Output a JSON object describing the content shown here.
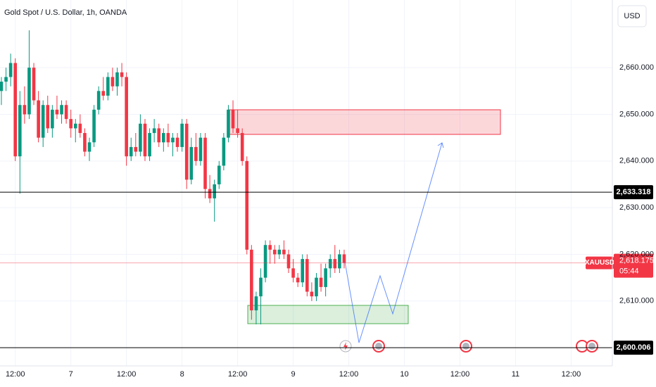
{
  "chart_data": {
    "type": "candlestick",
    "title": "Gold Spot / U.S. Dollar, 1h, OANDA",
    "currency": "USD",
    "up_color": "#089981",
    "down_color": "#f23645",
    "x": [
      9,
      10,
      11,
      12,
      13,
      14,
      15,
      16,
      17,
      18,
      19,
      20,
      21,
      22,
      23,
      24,
      25,
      26,
      27,
      28,
      29,
      30,
      31,
      32,
      33,
      34,
      35,
      36,
      37,
      38,
      39,
      40,
      41,
      42,
      43,
      44,
      45,
      46,
      47,
      48,
      49,
      50,
      51,
      52,
      53,
      54,
      55,
      56,
      57,
      58,
      59,
      60,
      61,
      62,
      63,
      64,
      65,
      66,
      67,
      68,
      69,
      70,
      71,
      72,
      73,
      74,
      75,
      76,
      77,
      78,
      79,
      80,
      81,
      82,
      83
    ],
    "open": [
      2655,
      2657,
      2658,
      2661,
      2641,
      2652,
      2650,
      2660,
      2653,
      2645,
      2652,
      2647,
      2651,
      2650,
      2652,
      2649,
      2647,
      2648,
      2646,
      2642,
      2644,
      2651,
      2655,
      2654,
      2658,
      2656,
      2659,
      2658,
      2641,
      2643,
      2642,
      2648,
      2641,
      2646,
      2647,
      2644,
      2646,
      2644,
      2645,
      2643,
      2648,
      2636,
      2643,
      2640,
      2645,
      2634,
      2632,
      2635,
      2639,
      2645,
      2651,
      2647,
      2646,
      2640,
      2621,
      2608,
      2611,
      2615,
      2622,
      2621,
      2620,
      2621,
      2620,
      2617,
      2615,
      2614,
      2619,
      2612,
      2611,
      2615,
      2613,
      2617,
      2619,
      2617,
      2620
    ],
    "high": [
      2658,
      2660,
      2663,
      2662,
      2655,
      2656,
      2668,
      2661,
      2655,
      2653,
      2654,
      2652,
      2654,
      2653,
      2653,
      2651,
      2649,
      2650,
      2647,
      2645,
      2652,
      2656,
      2658,
      2659,
      2660,
      2660,
      2661,
      2659,
      2645,
      2646,
      2650,
      2649,
      2647,
      2649,
      2648,
      2647,
      2648,
      2646,
      2646,
      2649,
      2649,
      2645,
      2646,
      2646,
      2646,
      2637,
      2636,
      2640,
      2646,
      2652,
      2653,
      2651,
      2647,
      2641,
      2622,
      2612,
      2617,
      2623,
      2623,
      2622,
      2622,
      2623,
      2621,
      2619,
      2616,
      2620,
      2620,
      2614,
      2616,
      2618,
      2618,
      2620,
      2622,
      2621,
      2621
    ],
    "low": [
      2652,
      2655,
      2656,
      2640,
      2633,
      2648,
      2649,
      2652,
      2644,
      2643,
      2646,
      2645,
      2649,
      2648,
      2648,
      2645,
      2644,
      2645,
      2641,
      2640,
      2643,
      2650,
      2653,
      2653,
      2655,
      2654,
      2656,
      2639,
      2640,
      2641,
      2641,
      2640,
      2640,
      2644,
      2643,
      2642,
      2643,
      2641,
      2642,
      2642,
      2634,
      2635,
      2639,
      2639,
      2632,
      2631,
      2627,
      2634,
      2638,
      2644,
      2646,
      2645,
      2639,
      2620,
      2606,
      2605,
      2605,
      2614,
      2618,
      2618,
      2619,
      2619,
      2616,
      2614,
      2613,
      2613,
      2611,
      2610,
      2610,
      2612,
      2611,
      2615,
      2616,
      2616,
      2617
    ],
    "close": [
      2657,
      2658,
      2661,
      2641,
      2652,
      2650,
      2660,
      2653,
      2645,
      2652,
      2647,
      2651,
      2650,
      2652,
      2649,
      2647,
      2648,
      2646,
      2642,
      2644,
      2651,
      2655,
      2654,
      2658,
      2656,
      2659,
      2658,
      2641,
      2643,
      2642,
      2648,
      2641,
      2646,
      2647,
      2644,
      2646,
      2644,
      2645,
      2643,
      2648,
      2636,
      2643,
      2640,
      2645,
      2634,
      2632,
      2635,
      2639,
      2645,
      2651,
      2647,
      2646,
      2640,
      2621,
      2608,
      2611,
      2615,
      2622,
      2621,
      2620,
      2621,
      2620,
      2617,
      2615,
      2614,
      2619,
      2612,
      2611,
      2615,
      2613,
      2617,
      2619,
      2617,
      2620,
      2618.175
    ],
    "xlim": [
      8.7,
      140.9
    ],
    "xticks": [
      {
        "value": 12,
        "label": "12:00"
      },
      {
        "value": 24,
        "label": "7"
      },
      {
        "value": 36,
        "label": "12:00"
      },
      {
        "value": 48,
        "label": "8"
      },
      {
        "value": 60,
        "label": "12:00"
      },
      {
        "value": 72,
        "label": "9"
      },
      {
        "value": 84,
        "label": "12:00"
      },
      {
        "value": 96,
        "label": "10"
      },
      {
        "value": 108,
        "label": "12:00"
      },
      {
        "value": 120,
        "label": "11"
      },
      {
        "value": 132,
        "label": "12:00"
      }
    ],
    "ylim": [
      2596.1,
      2674.5
    ],
    "yticks": [
      {
        "value": 2610,
        "label": "2,610.000"
      },
      {
        "value": 2620,
        "label": "2,620.000"
      },
      {
        "value": 2630,
        "label": "2,630.000"
      },
      {
        "value": 2640,
        "label": "2,640.000"
      },
      {
        "value": 2650,
        "label": "2,650.000"
      },
      {
        "value": 2660,
        "label": "2,660.000"
      }
    ],
    "grid": true,
    "price_lines": [
      {
        "value": 2633.318,
        "label": "2,633.318"
      },
      {
        "value": 2600.006,
        "label": "2,600.006"
      }
    ],
    "last_price": {
      "symbol": "XAUUSD",
      "value": 2618.175,
      "label": "2,618.175",
      "countdown": "05:44"
    }
  }
}
